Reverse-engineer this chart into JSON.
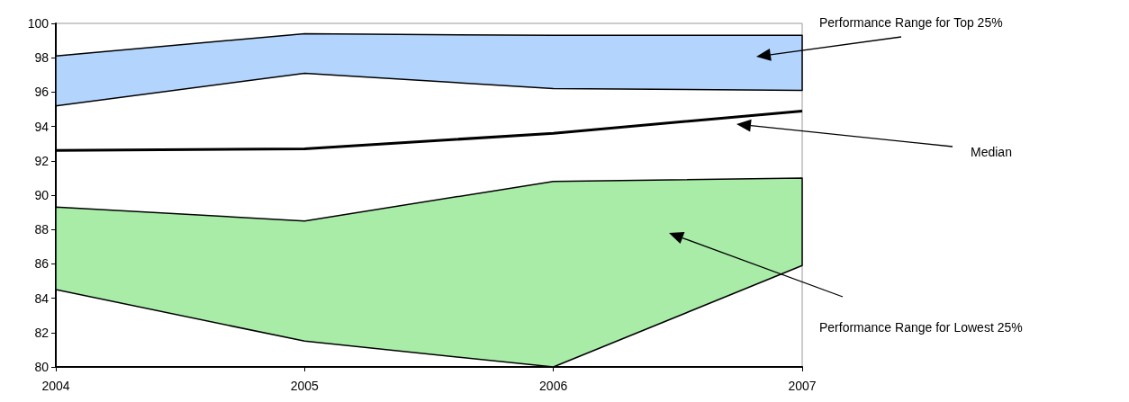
{
  "chart_data": {
    "type": "line",
    "categories": [
      "2004",
      "2005",
      "2006",
      "2007"
    ],
    "series": [
      {
        "color": "#b3d4fc",
        "values": [
          null,
          null,
          null,
          null
        ],
        "lower": [
          95.2,
          97.1,
          96.2,
          96.1
        ],
        "upper": [
          98.1,
          99.4,
          99.3,
          99.3
        ]
      },
      {
        "color": "#000000",
        "values": [
          92.6,
          92.7,
          93.6,
          94.9
        ]
      },
      {
        "color": "#a8eca8",
        "values": [
          null,
          null,
          null,
          null
        ],
        "lower": [
          84.5,
          81.5,
          80.0,
          85.9
        ],
        "upper": [
          89.3,
          88.5,
          90.8,
          91.0
        ]
      }
    ],
    "ylim": [
      80,
      100
    ],
    "yticks": [
      80,
      82,
      84,
      86,
      88,
      90,
      92,
      94,
      96,
      98,
      100
    ],
    "grid": false,
    "marker": "none",
    "line_style": "solid",
    "annotations": [
      "Performance Range for Top 25%",
      "Median",
      "Performance Range for Lowest 25%"
    ]
  }
}
